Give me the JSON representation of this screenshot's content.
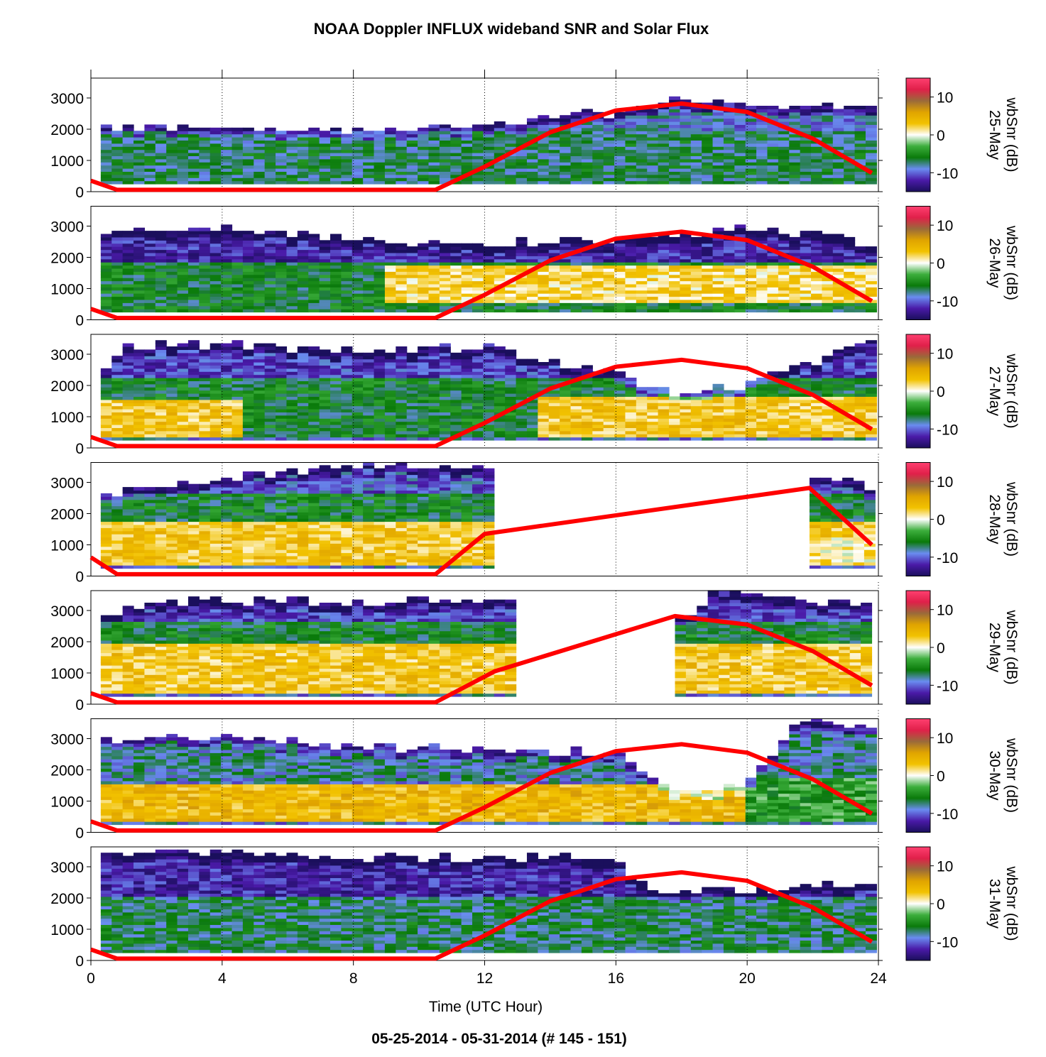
{
  "title": "NOAA Doppler INFLUX wideband SNR and Solar Flux",
  "footer": "05-25-2014 - 05-31-2014   (# 145 - 151)",
  "colors": {
    "solar_line": "#ff0000",
    "colorbar_stops": [
      "#1a0f5c",
      "#4a1aa8",
      "#6a8cf0",
      "#0a7a0a",
      "#3cae3c",
      "#ffffff",
      "#f2c200",
      "#e0a400",
      "#9a6a3a",
      "#e0204a",
      "#ff4070"
    ]
  },
  "chart_data": {
    "type": "heatmap",
    "xlabel": "Time (UTC Hour)",
    "xlim": [
      0,
      24
    ],
    "x_ticks": [
      "0",
      "4",
      "8",
      "12",
      "16",
      "20",
      "24"
    ],
    "ylim": [
      0,
      3500
    ],
    "y_ticks": [
      "0",
      "1000",
      "2000",
      "3000"
    ],
    "colorbar": {
      "label": "wbSnr (dB)",
      "range": [
        -15,
        15
      ],
      "ticks": [
        "10",
        "0",
        "-10"
      ]
    },
    "grid": "dotted vertical lines every 4 hours",
    "panels": [
      {
        "date": "25-May",
        "coverage": [
          [
            0.3,
            23.8
          ]
        ],
        "snr_top": [
          [
            0.3,
            2050
          ],
          [
            4,
            1950
          ],
          [
            8,
            1950
          ],
          [
            12,
            2050
          ],
          [
            16,
            2500
          ],
          [
            18,
            2900
          ],
          [
            20,
            2700
          ],
          [
            23.8,
            2800
          ]
        ],
        "layers": [
          {
            "range": [
              250,
              1950
            ],
            "snr": -7
          }
        ],
        "solar_flux": [
          [
            0,
            350
          ],
          [
            0.8,
            60
          ],
          [
            10.5,
            60
          ],
          [
            12,
            800
          ],
          [
            14,
            1900
          ],
          [
            16,
            2600
          ],
          [
            18,
            2820
          ],
          [
            20,
            2550
          ],
          [
            22,
            1700
          ],
          [
            23.8,
            600
          ]
        ]
      },
      {
        "date": "26-May",
        "coverage": [
          [
            0.3,
            23.8
          ]
        ],
        "snr_top": [
          [
            0.3,
            2800
          ],
          [
            4,
            2900
          ],
          [
            8,
            2500
          ],
          [
            12,
            2400
          ],
          [
            16,
            2500
          ],
          [
            20,
            2900
          ],
          [
            23.8,
            2400
          ]
        ],
        "layers": [
          {
            "range": [
              1800,
              2800
            ],
            "snr": -12
          },
          {
            "range": [
              250,
              1800
            ],
            "snr": -6
          },
          {
            "range": [
              500,
              1700
            ],
            "snr": 2,
            "from_hour": 9
          }
        ],
        "solar_flux": [
          [
            0,
            350
          ],
          [
            0.8,
            60
          ],
          [
            10.5,
            60
          ],
          [
            12,
            800
          ],
          [
            14,
            1900
          ],
          [
            16,
            2600
          ],
          [
            18,
            2820
          ],
          [
            20,
            2550
          ],
          [
            22,
            1700
          ],
          [
            23.8,
            600
          ]
        ]
      },
      {
        "date": "27-May",
        "coverage": [
          [
            0.3,
            23.8
          ]
        ],
        "snr_top": [
          [
            0.3,
            2400
          ],
          [
            1,
            3200
          ],
          [
            4,
            3300
          ],
          [
            8,
            3000
          ],
          [
            12,
            3200
          ],
          [
            16,
            2300
          ],
          [
            18,
            1600
          ],
          [
            20,
            2000
          ],
          [
            23.8,
            3300
          ]
        ],
        "layers": [
          {
            "range": [
              1800,
              3200
            ],
            "snr": -11
          },
          {
            "range": [
              300,
              2200
            ],
            "snr": -6
          },
          {
            "range": [
              300,
              1500
            ],
            "snr": 3,
            "until_hour": 4.5
          },
          {
            "range": [
              300,
              1600
            ],
            "snr": 3,
            "from_hour": 13.5
          }
        ],
        "solar_flux": [
          [
            0,
            350
          ],
          [
            0.8,
            60
          ],
          [
            10.5,
            60
          ],
          [
            12,
            800
          ],
          [
            14,
            1900
          ],
          [
            16,
            2600
          ],
          [
            18,
            2820
          ],
          [
            20,
            2550
          ],
          [
            22,
            1700
          ],
          [
            23.8,
            600
          ]
        ]
      },
      {
        "date": "28-May",
        "coverage": [
          [
            0.3,
            12.2
          ],
          [
            21.9,
            23.8
          ]
        ],
        "snr_top": [
          [
            0.3,
            2600
          ],
          [
            4,
            3100
          ],
          [
            8,
            3500
          ],
          [
            12.2,
            3500
          ],
          [
            21.9,
            3200
          ],
          [
            23.8,
            2800
          ]
        ],
        "layers": [
          {
            "range": [
              2200,
              3500
            ],
            "snr": -10
          },
          {
            "range": [
              1500,
              2600
            ],
            "snr": -6
          },
          {
            "range": [
              300,
              1700
            ],
            "snr": 3
          },
          {
            "range": [
              300,
              1200
            ],
            "snr": 1,
            "from_hour": 21.9
          }
        ],
        "solar_flux": [
          [
            0,
            600
          ],
          [
            0.8,
            60
          ],
          [
            10.5,
            60
          ],
          [
            12,
            1350
          ],
          [
            21.9,
            2820
          ],
          [
            23.8,
            1000
          ]
        ]
      },
      {
        "date": "29-May",
        "coverage": [
          [
            0.3,
            12.7
          ],
          [
            17.8,
            23.8
          ]
        ],
        "snr_top": [
          [
            0.3,
            2700
          ],
          [
            2,
            3200
          ],
          [
            4,
            3300
          ],
          [
            8,
            3200
          ],
          [
            12.7,
            3400
          ],
          [
            17.8,
            2500
          ],
          [
            19,
            3500
          ],
          [
            23.8,
            3100
          ]
        ],
        "layers": [
          {
            "range": [
              2500,
              3400
            ],
            "snr": -11
          },
          {
            "range": [
              1800,
              2600
            ],
            "snr": -6
          },
          {
            "range": [
              300,
              1900
            ],
            "snr": 3
          }
        ],
        "solar_flux": [
          [
            0,
            350
          ],
          [
            0.8,
            60
          ],
          [
            10.5,
            60
          ],
          [
            12.3,
            1050
          ],
          [
            17.8,
            2820
          ],
          [
            20,
            2550
          ],
          [
            22,
            1700
          ],
          [
            23.8,
            600
          ]
        ]
      },
      {
        "date": "30-May",
        "coverage": [
          [
            0.3,
            23.8
          ]
        ],
        "snr_top": [
          [
            0.3,
            2900
          ],
          [
            4,
            3100
          ],
          [
            8,
            2700
          ],
          [
            12,
            2600
          ],
          [
            16,
            2500
          ],
          [
            18,
            1300
          ],
          [
            20,
            1500
          ],
          [
            21.5,
            3500
          ],
          [
            23.8,
            3300
          ]
        ],
        "layers": [
          {
            "range": [
              1600,
              3100
            ],
            "snr": -8
          },
          {
            "range": [
              300,
              1500
            ],
            "snr": 4
          },
          {
            "range": [
              300,
              1700
            ],
            "snr": -4,
            "from_hour": 20
          }
        ],
        "solar_flux": [
          [
            0,
            350
          ],
          [
            0.8,
            60
          ],
          [
            10.5,
            60
          ],
          [
            12,
            800
          ],
          [
            14,
            1900
          ],
          [
            16,
            2600
          ],
          [
            18,
            2820
          ],
          [
            20,
            2550
          ],
          [
            22,
            1700
          ],
          [
            23.8,
            600
          ]
        ]
      },
      {
        "date": "31-May",
        "coverage": [
          [
            0.3,
            23.8
          ]
        ],
        "snr_top": [
          [
            0.3,
            3400
          ],
          [
            4,
            3400
          ],
          [
            8,
            3200
          ],
          [
            12,
            3300
          ],
          [
            16,
            3200
          ],
          [
            17,
            2200
          ],
          [
            20,
            2200
          ],
          [
            23.8,
            2400
          ]
        ],
        "layers": [
          {
            "range": [
              2000,
              3400
            ],
            "snr": -12
          },
          {
            "range": [
              250,
              2000
            ],
            "snr": -7
          }
        ],
        "solar_flux": [
          [
            0,
            350
          ],
          [
            0.8,
            60
          ],
          [
            10.5,
            60
          ],
          [
            12,
            800
          ],
          [
            14,
            1900
          ],
          [
            16,
            2600
          ],
          [
            18,
            2820
          ],
          [
            20,
            2550
          ],
          [
            22,
            1700
          ],
          [
            23.8,
            600
          ]
        ]
      }
    ]
  }
}
